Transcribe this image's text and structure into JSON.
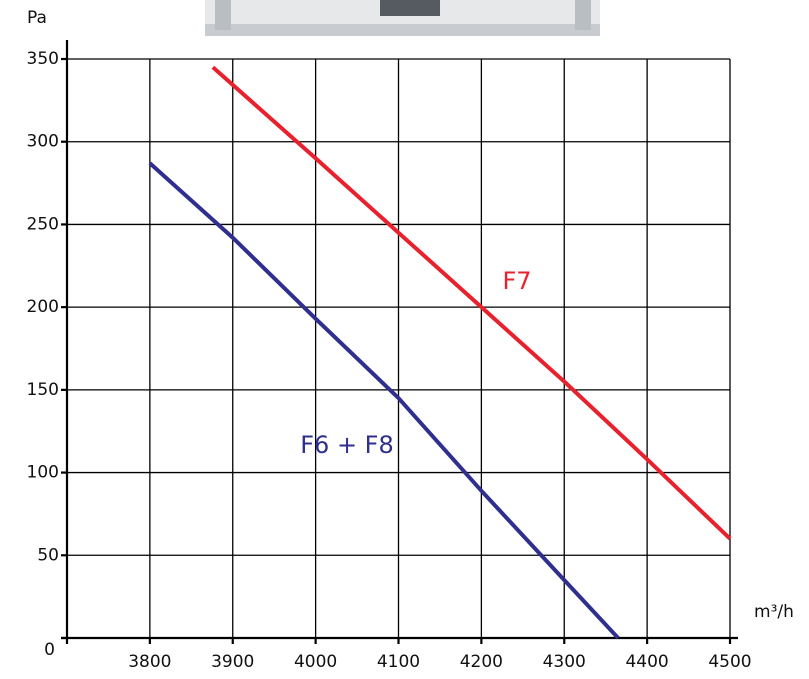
{
  "chart_data": {
    "type": "line",
    "y_label": "Pa",
    "x_label": "m³/h",
    "xlim": [
      3700,
      4500
    ],
    "xticks": [
      3800,
      3900,
      4000,
      4100,
      4200,
      4300,
      4400,
      4500
    ],
    "ylim": [
      0,
      350
    ],
    "yticks": [
      0,
      50,
      100,
      150,
      200,
      250,
      300,
      350
    ],
    "grid": true,
    "series": [
      {
        "name": "F7",
        "color": "#e8212d",
        "x": [
          3876,
          4000,
          4100,
          4200,
          4300,
          4400,
          4500
        ],
        "values": [
          345,
          290,
          245,
          200,
          155,
          108,
          60
        ]
      },
      {
        "name": "F6 + F8",
        "color": "#2e2f8e",
        "x": [
          3800,
          3900,
          4000,
          4100,
          4200,
          4300,
          4365
        ],
        "values": [
          287,
          242,
          193,
          145,
          89,
          35,
          0
        ]
      }
    ]
  }
}
